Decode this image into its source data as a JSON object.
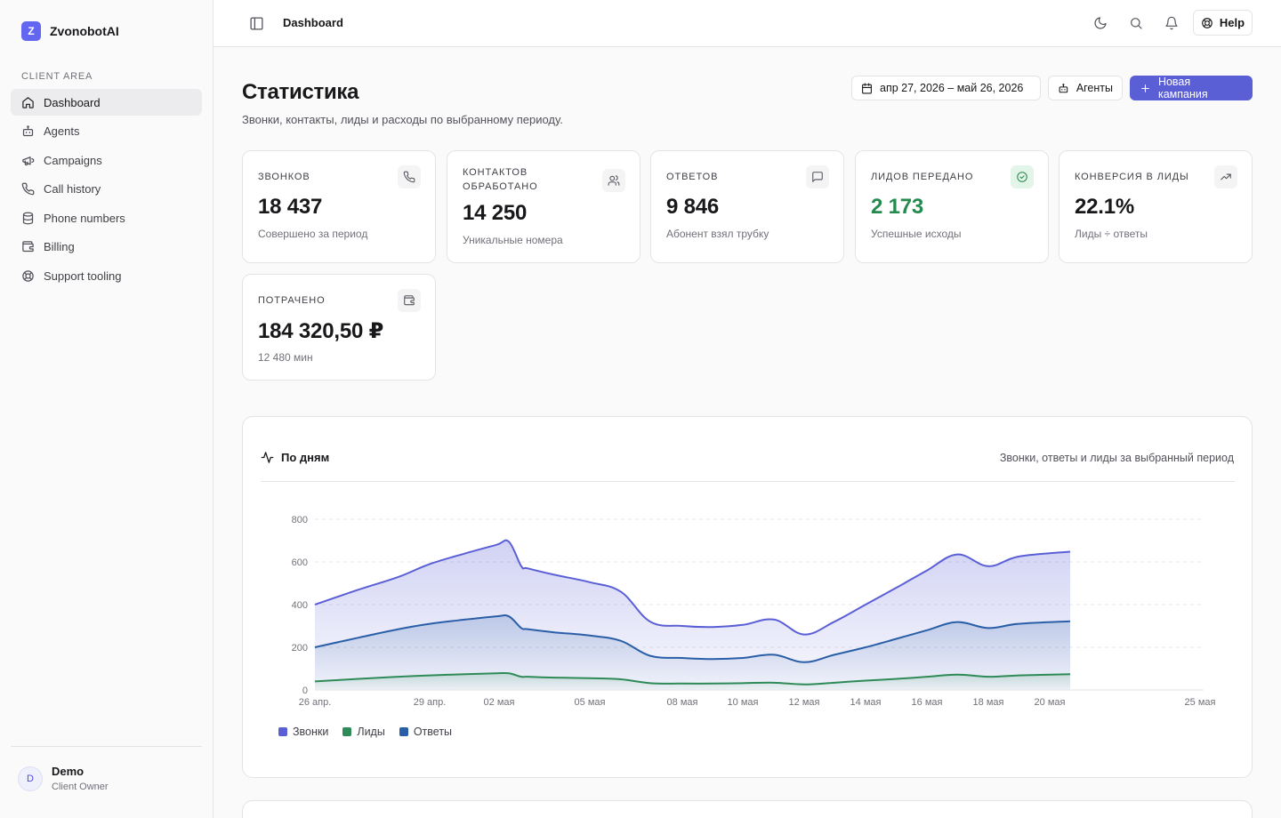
{
  "brand": {
    "name": "ZvonobotAI",
    "logo_letter": "Z",
    "accent": "#6366f1"
  },
  "sidebar": {
    "section_label": "CLIENT AREA",
    "items": [
      {
        "label": "Dashboard",
        "icon": "home-icon",
        "active": true
      },
      {
        "label": "Agents",
        "icon": "bot-icon"
      },
      {
        "label": "Campaigns",
        "icon": "megaphone-icon"
      },
      {
        "label": "Call history",
        "icon": "phone-icon"
      },
      {
        "label": "Phone numbers",
        "icon": "database-icon"
      },
      {
        "label": "Billing",
        "icon": "wallet-icon"
      },
      {
        "label": "Support tooling",
        "icon": "lifebuoy-icon"
      }
    ],
    "user": {
      "initial": "D",
      "name": "Demo",
      "role": "Client Owner"
    }
  },
  "header": {
    "breadcrumb": "Dashboard",
    "help_label": "Help"
  },
  "page": {
    "title": "Статистика",
    "subtitle": "Звонки, контакты, лиды и расходы по выбранному периоду.",
    "date_range": "апр 27, 2026 – май 26, 2026",
    "agents_label": "Агенты",
    "new_campaign_label": "Новая кампания",
    "primary_color": "#5b5fd6"
  },
  "stats": [
    {
      "label": "Звонков",
      "value": "18 437",
      "hint": "Совершено за период",
      "icon": "phone-icon"
    },
    {
      "label": "Контактов обработано",
      "value": "14 250",
      "hint": "Уникальные номера",
      "icon": "users-icon"
    },
    {
      "label": "Ответов",
      "value": "9 846",
      "hint": "Абонент взял трубку",
      "icon": "message-icon"
    },
    {
      "label": "Лидов передано",
      "value": "2 173",
      "hint": "Успешные исходы",
      "icon": "check-circle-icon",
      "accent": "#248a4d"
    },
    {
      "label": "Конверсия в лиды",
      "value": "22.1%",
      "hint": "Лиды ÷ ответы",
      "icon": "trending-up-icon"
    },
    {
      "label": "Потрачено",
      "value": "184 320,50 ₽",
      "hint": "12 480 мин",
      "icon": "wallet-icon"
    }
  ],
  "chart": {
    "title": "По дням",
    "description": "Звонки, ответы и лиды за выбранный период",
    "legend": [
      {
        "name": "Звонки",
        "color": "#5b5fd6"
      },
      {
        "name": "Лиды",
        "color": "#2e8b57"
      },
      {
        "name": "Ответы",
        "color": "#2a5fa8"
      }
    ]
  },
  "chart_data": {
    "type": "area",
    "title": "",
    "xlabel": "",
    "ylabel": "",
    "ylim": [
      0,
      800
    ],
    "yticks": [
      0,
      200,
      400,
      600,
      800
    ],
    "xtick_labels": [
      "26 апр.",
      "29 апр.",
      "02 мая",
      "05 мая",
      "08 мая",
      "10 мая",
      "12 мая",
      "14 мая",
      "16 мая",
      "18 мая",
      "20 мая",
      "25 мая"
    ],
    "x_domain": [
      "26 апр.",
      "25 мая"
    ],
    "grid": true,
    "legend_position": "bottom-left",
    "series": [
      {
        "name": "Звонки",
        "color": "#5b5fd6",
        "points": [
          [
            "26 апр.",
            400
          ],
          [
            "27 апр.",
            470
          ],
          [
            "28 апр.",
            530
          ],
          [
            "29 апр.",
            590
          ],
          [
            "30 апр.",
            640
          ],
          [
            "01 мая",
            680
          ],
          [
            "02 мая",
            695
          ],
          [
            "02 мая*",
            580
          ],
          [
            "03 мая",
            570
          ],
          [
            "04 мая",
            540
          ],
          [
            "05 мая",
            505
          ],
          [
            "06 мая",
            460
          ],
          [
            "07 мая",
            320
          ],
          [
            "08 мая",
            300
          ],
          [
            "09 мая",
            295
          ],
          [
            "10 мая",
            305
          ],
          [
            "11 мая",
            330
          ],
          [
            "12 мая",
            260
          ],
          [
            "13 мая",
            320
          ],
          [
            "14 мая",
            400
          ],
          [
            "15 мая",
            480
          ],
          [
            "16 мая",
            560
          ],
          [
            "17 мая",
            635
          ],
          [
            "18 мая",
            580
          ],
          [
            "19 мая",
            625
          ],
          [
            "20 мая",
            648
          ]
        ]
      },
      {
        "name": "Ответы",
        "color": "#2a5fa8",
        "points": [
          [
            "26 апр.",
            200
          ],
          [
            "27 апр.",
            245
          ],
          [
            "28 апр.",
            285
          ],
          [
            "29 апр.",
            310
          ],
          [
            "30 апр.",
            330
          ],
          [
            "01 мая",
            345
          ],
          [
            "02 мая",
            345
          ],
          [
            "02 мая*",
            290
          ],
          [
            "03 мая",
            285
          ],
          [
            "04 мая",
            270
          ],
          [
            "05 мая",
            255
          ],
          [
            "06 мая",
            230
          ],
          [
            "07 мая",
            160
          ],
          [
            "08 мая",
            150
          ],
          [
            "09 мая",
            145
          ],
          [
            "10 мая",
            150
          ],
          [
            "11 мая",
            165
          ],
          [
            "12 мая",
            130
          ],
          [
            "13 мая",
            165
          ],
          [
            "14 мая",
            200
          ],
          [
            "15 мая",
            240
          ],
          [
            "16 мая",
            280
          ],
          [
            "17 мая",
            318
          ],
          [
            "18 мая",
            290
          ],
          [
            "19 мая",
            310
          ],
          [
            "20 мая",
            322
          ]
        ]
      },
      {
        "name": "Лиды",
        "color": "#2e8b57",
        "points": [
          [
            "26 апр.",
            40
          ],
          [
            "27 апр.",
            52
          ],
          [
            "28 апр.",
            62
          ],
          [
            "29 апр.",
            68
          ],
          [
            "30 апр.",
            74
          ],
          [
            "01 мая",
            78
          ],
          [
            "02 мая",
            78
          ],
          [
            "02 мая*",
            62
          ],
          [
            "03 мая",
            62
          ],
          [
            "04 мая",
            58
          ],
          [
            "05 мая",
            55
          ],
          [
            "06 мая",
            50
          ],
          [
            "07 мая",
            32
          ],
          [
            "08 мая",
            30
          ],
          [
            "09 мая",
            30
          ],
          [
            "10 мая",
            32
          ],
          [
            "11 мая",
            34
          ],
          [
            "12 мая",
            26
          ],
          [
            "13 мая",
            34
          ],
          [
            "14 мая",
            44
          ],
          [
            "15 мая",
            52
          ],
          [
            "16 мая",
            62
          ],
          [
            "17 мая",
            72
          ],
          [
            "18 мая",
            62
          ],
          [
            "19 мая",
            68
          ],
          [
            "20 мая",
            74
          ]
        ]
      }
    ]
  }
}
